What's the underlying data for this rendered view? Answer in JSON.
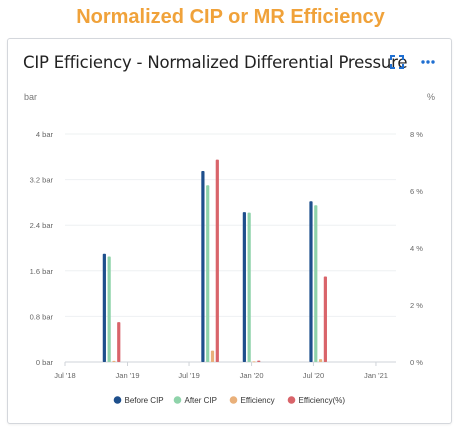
{
  "page": {
    "title": "Normalized CIP or MR Efficiency"
  },
  "card": {
    "title": "CIP Efficiency - Normalized Differential Pressure",
    "icons": {
      "expand": "expand-icon",
      "more": "more-options-icon"
    },
    "accent": "#1f6fd1"
  },
  "chart_data": {
    "type": "bar",
    "title": "CIP Efficiency - Normalized Differential Pressure",
    "y_left": {
      "unit": "bar",
      "range": [
        0,
        4
      ],
      "ticks": [
        "0 bar",
        "0.8 bar",
        "1.6 bar",
        "2.4 bar",
        "3.2 bar",
        "4 bar"
      ]
    },
    "y_right": {
      "unit": "%",
      "range": [
        0,
        8
      ],
      "ticks": [
        "0 %",
        "2 %",
        "4 %",
        "6 %",
        "8 %"
      ]
    },
    "x_axis": {
      "type": "time",
      "range": [
        "2018-07-01",
        "2021-03-01"
      ],
      "ticks": [
        {
          "date": "2018-07-01",
          "label": "Jul '18"
        },
        {
          "date": "2019-01-01",
          "label": "Jan '19"
        },
        {
          "date": "2019-07-01",
          "label": "Jul '19"
        },
        {
          "date": "2020-01-01",
          "label": "Jan '20"
        },
        {
          "date": "2020-07-01",
          "label": "Jul '20"
        },
        {
          "date": "2021-01-01",
          "label": "Jan '21"
        }
      ]
    },
    "events": [
      {
        "date": "2018-11-15",
        "before_cip": 1.9,
        "after_cip": 1.85,
        "efficiency": 0.02,
        "efficiency_pct": 1.4
      },
      {
        "date": "2019-09-01",
        "before_cip": 3.35,
        "after_cip": 3.1,
        "efficiency": 0.2,
        "efficiency_pct": 7.1
      },
      {
        "date": "2020-01-01",
        "before_cip": 2.63,
        "after_cip": 2.62,
        "efficiency": 0.01,
        "efficiency_pct": 0.05
      },
      {
        "date": "2020-07-15",
        "before_cip": 2.82,
        "after_cip": 2.75,
        "efficiency": 0.05,
        "efficiency_pct": 3.0
      }
    ],
    "series": [
      {
        "name": "Before CIP",
        "key": "before_cip",
        "axis": "left",
        "color": "#1e4f8c"
      },
      {
        "name": "After CIP",
        "key": "after_cip",
        "axis": "left",
        "color": "#8fd3aa"
      },
      {
        "name": "Efficiency",
        "key": "efficiency",
        "axis": "left",
        "color": "#e9b07a"
      },
      {
        "name": "Efficiency(%)",
        "key": "efficiency_pct",
        "axis": "right",
        "color": "#d9646a"
      }
    ],
    "legend_position": "bottom",
    "grid": true
  }
}
